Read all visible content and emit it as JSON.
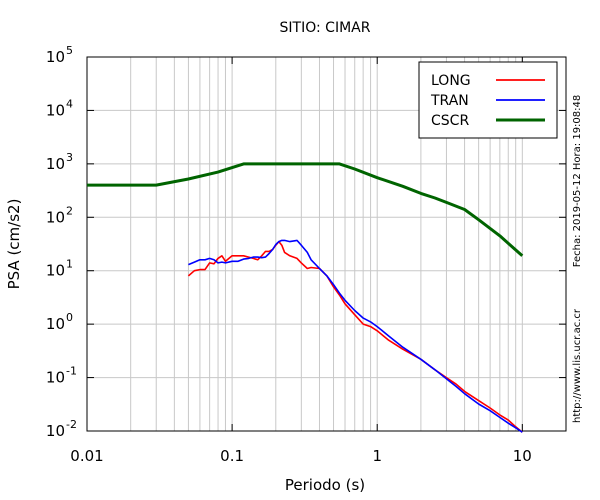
{
  "chart_data": {
    "type": "line",
    "title": "SITIO: CIMAR",
    "xlabel": "Periodo (s)",
    "ylabel": "PSA (cm/s2)",
    "x_scale": "log",
    "y_scale": "log",
    "xlim": [
      0.01,
      20
    ],
    "ylim": [
      0.01,
      100000
    ],
    "x_ticks": [
      {
        "value": 0.01,
        "label": "0.01"
      },
      {
        "value": 0.1,
        "label": "0.1"
      },
      {
        "value": 1,
        "label": "1"
      },
      {
        "value": 10,
        "label": "10"
      }
    ],
    "y_ticks": [
      {
        "value": 0.01,
        "base": "10",
        "exp": "-2"
      },
      {
        "value": 0.1,
        "base": "10",
        "exp": "-1"
      },
      {
        "value": 1,
        "base": "10",
        "exp": "0"
      },
      {
        "value": 10,
        "base": "10",
        "exp": "1"
      },
      {
        "value": 100,
        "base": "10",
        "exp": "2"
      },
      {
        "value": 1000,
        "base": "10",
        "exp": "3"
      },
      {
        "value": 10000,
        "base": "10",
        "exp": "4"
      },
      {
        "value": 100000,
        "base": "10",
        "exp": "5"
      }
    ],
    "grid": true,
    "legend_position": "top-right",
    "series": [
      {
        "name": "LONG",
        "color": "#ff0000",
        "x": [
          0.05,
          0.055,
          0.06,
          0.065,
          0.07,
          0.075,
          0.08,
          0.085,
          0.09,
          0.1,
          0.11,
          0.12,
          0.13,
          0.14,
          0.15,
          0.16,
          0.17,
          0.18,
          0.19,
          0.2,
          0.21,
          0.22,
          0.23,
          0.25,
          0.28,
          0.3,
          0.33,
          0.35,
          0.4,
          0.45,
          0.5,
          0.55,
          0.6,
          0.7,
          0.8,
          0.9,
          1.0,
          1.2,
          1.5,
          2.0,
          2.5,
          3.0,
          3.5,
          4.0,
          5.0,
          6.0,
          7.0,
          8.0,
          9.0,
          10.0
        ],
        "values": [
          8.0,
          10.0,
          10.5,
          10.5,
          14.0,
          13.5,
          17.0,
          19.0,
          15.0,
          19.0,
          19.0,
          19.0,
          18.0,
          17.0,
          16.0,
          19.0,
          23.0,
          23.0,
          25.0,
          30.0,
          35.0,
          30.0,
          22.0,
          19.0,
          17.0,
          14.0,
          11.0,
          11.5,
          11.0,
          8.0,
          5.0,
          3.5,
          2.4,
          1.5,
          1.0,
          0.9,
          0.75,
          0.5,
          0.34,
          0.22,
          0.14,
          0.1,
          0.075,
          0.055,
          0.037,
          0.027,
          0.02,
          0.016,
          0.012,
          0.0095
        ]
      },
      {
        "name": "TRAN",
        "color": "#0000ff",
        "x": [
          0.05,
          0.055,
          0.06,
          0.065,
          0.07,
          0.075,
          0.08,
          0.085,
          0.09,
          0.1,
          0.11,
          0.12,
          0.13,
          0.14,
          0.15,
          0.16,
          0.17,
          0.18,
          0.19,
          0.2,
          0.21,
          0.22,
          0.23,
          0.25,
          0.28,
          0.3,
          0.33,
          0.35,
          0.4,
          0.45,
          0.5,
          0.55,
          0.6,
          0.7,
          0.8,
          0.9,
          1.0,
          1.2,
          1.5,
          2.0,
          2.5,
          3.0,
          3.5,
          4.0,
          5.0,
          6.0,
          7.0,
          8.0,
          9.0,
          10.0
        ],
        "values": [
          13.0,
          14.5,
          16.0,
          16.0,
          17.0,
          16.0,
          14.0,
          14.5,
          14.0,
          15.0,
          15.0,
          16.5,
          17.0,
          18.0,
          18.0,
          17.5,
          18.0,
          21.0,
          25.0,
          31.0,
          35.0,
          37.0,
          37.0,
          35.0,
          37.0,
          30.0,
          22.0,
          16.0,
          11.0,
          8.0,
          5.5,
          3.8,
          2.8,
          1.8,
          1.3,
          1.1,
          0.9,
          0.6,
          0.37,
          0.22,
          0.14,
          0.095,
          0.068,
          0.05,
          0.032,
          0.024,
          0.018,
          0.014,
          0.0115,
          0.0095
        ]
      },
      {
        "name": "CSCR",
        "color": "#006400",
        "x": [
          0.01,
          0.02,
          0.03,
          0.05,
          0.08,
          0.12,
          0.2,
          0.3,
          0.55,
          0.7,
          1.0,
          1.5,
          2.0,
          2.5,
          3.0,
          4.0,
          5.0,
          7.0,
          10.0
        ],
        "values": [
          400,
          400,
          400,
          520,
          700,
          1000,
          1000,
          1000,
          1000,
          800,
          550,
          380,
          280,
          230,
          190,
          140,
          90,
          45,
          19
        ]
      }
    ],
    "watermark": "Fecha: 2019-05-12 Hora: 19:08:48",
    "source_url": "http://www.lis.ucr.ac.cr"
  }
}
